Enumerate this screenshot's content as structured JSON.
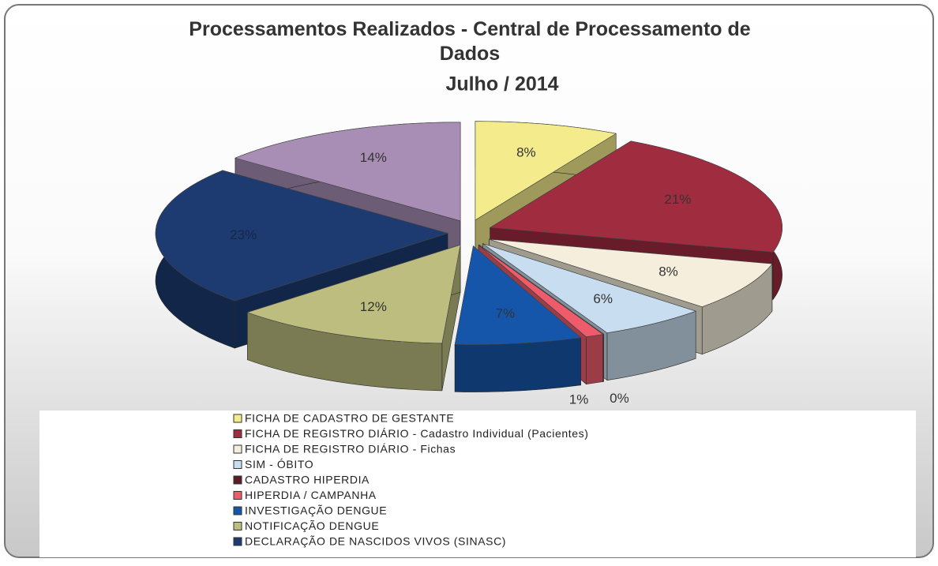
{
  "chart_data": {
    "type": "pie",
    "title": "Processamentos Realizados - Central de Processamento de Dados",
    "subtitle": "Julho / 2014",
    "categories": [
      "FICHA DE CADASTRO DE GESTANTE",
      "FICHA DE REGISTRO DIÁRIO - Cadastro Individual (Pacientes)",
      "FICHA DE REGISTRO DIÁRIO - Fichas",
      "SIM - ÓBITO",
      "CADASTRO HIPERDIA",
      "HIPERDIA / CAMPANHA",
      "INVESTIGAÇÃO DENGUE",
      "NOTIFICAÇÃO DENGUE",
      "DECLARAÇÃO DE NASCIDOS VIVOS (SINASC)",
      null
    ],
    "values": [
      8,
      21,
      8,
      6,
      0,
      1,
      7,
      12,
      23,
      14
    ],
    "value_labels": [
      "8%",
      "21%",
      "8%",
      "6%",
      "0%",
      "1%",
      "7%",
      "12%",
      "23%",
      "14%"
    ],
    "colors": [
      "#f4ec8c",
      "#a02c40",
      "#f6eedc",
      "#c8ddef",
      "#5c1c26",
      "#ee5c6c",
      "#1656aa",
      "#bcbd7e",
      "#1d3b70",
      "#a88eb4"
    ]
  }
}
